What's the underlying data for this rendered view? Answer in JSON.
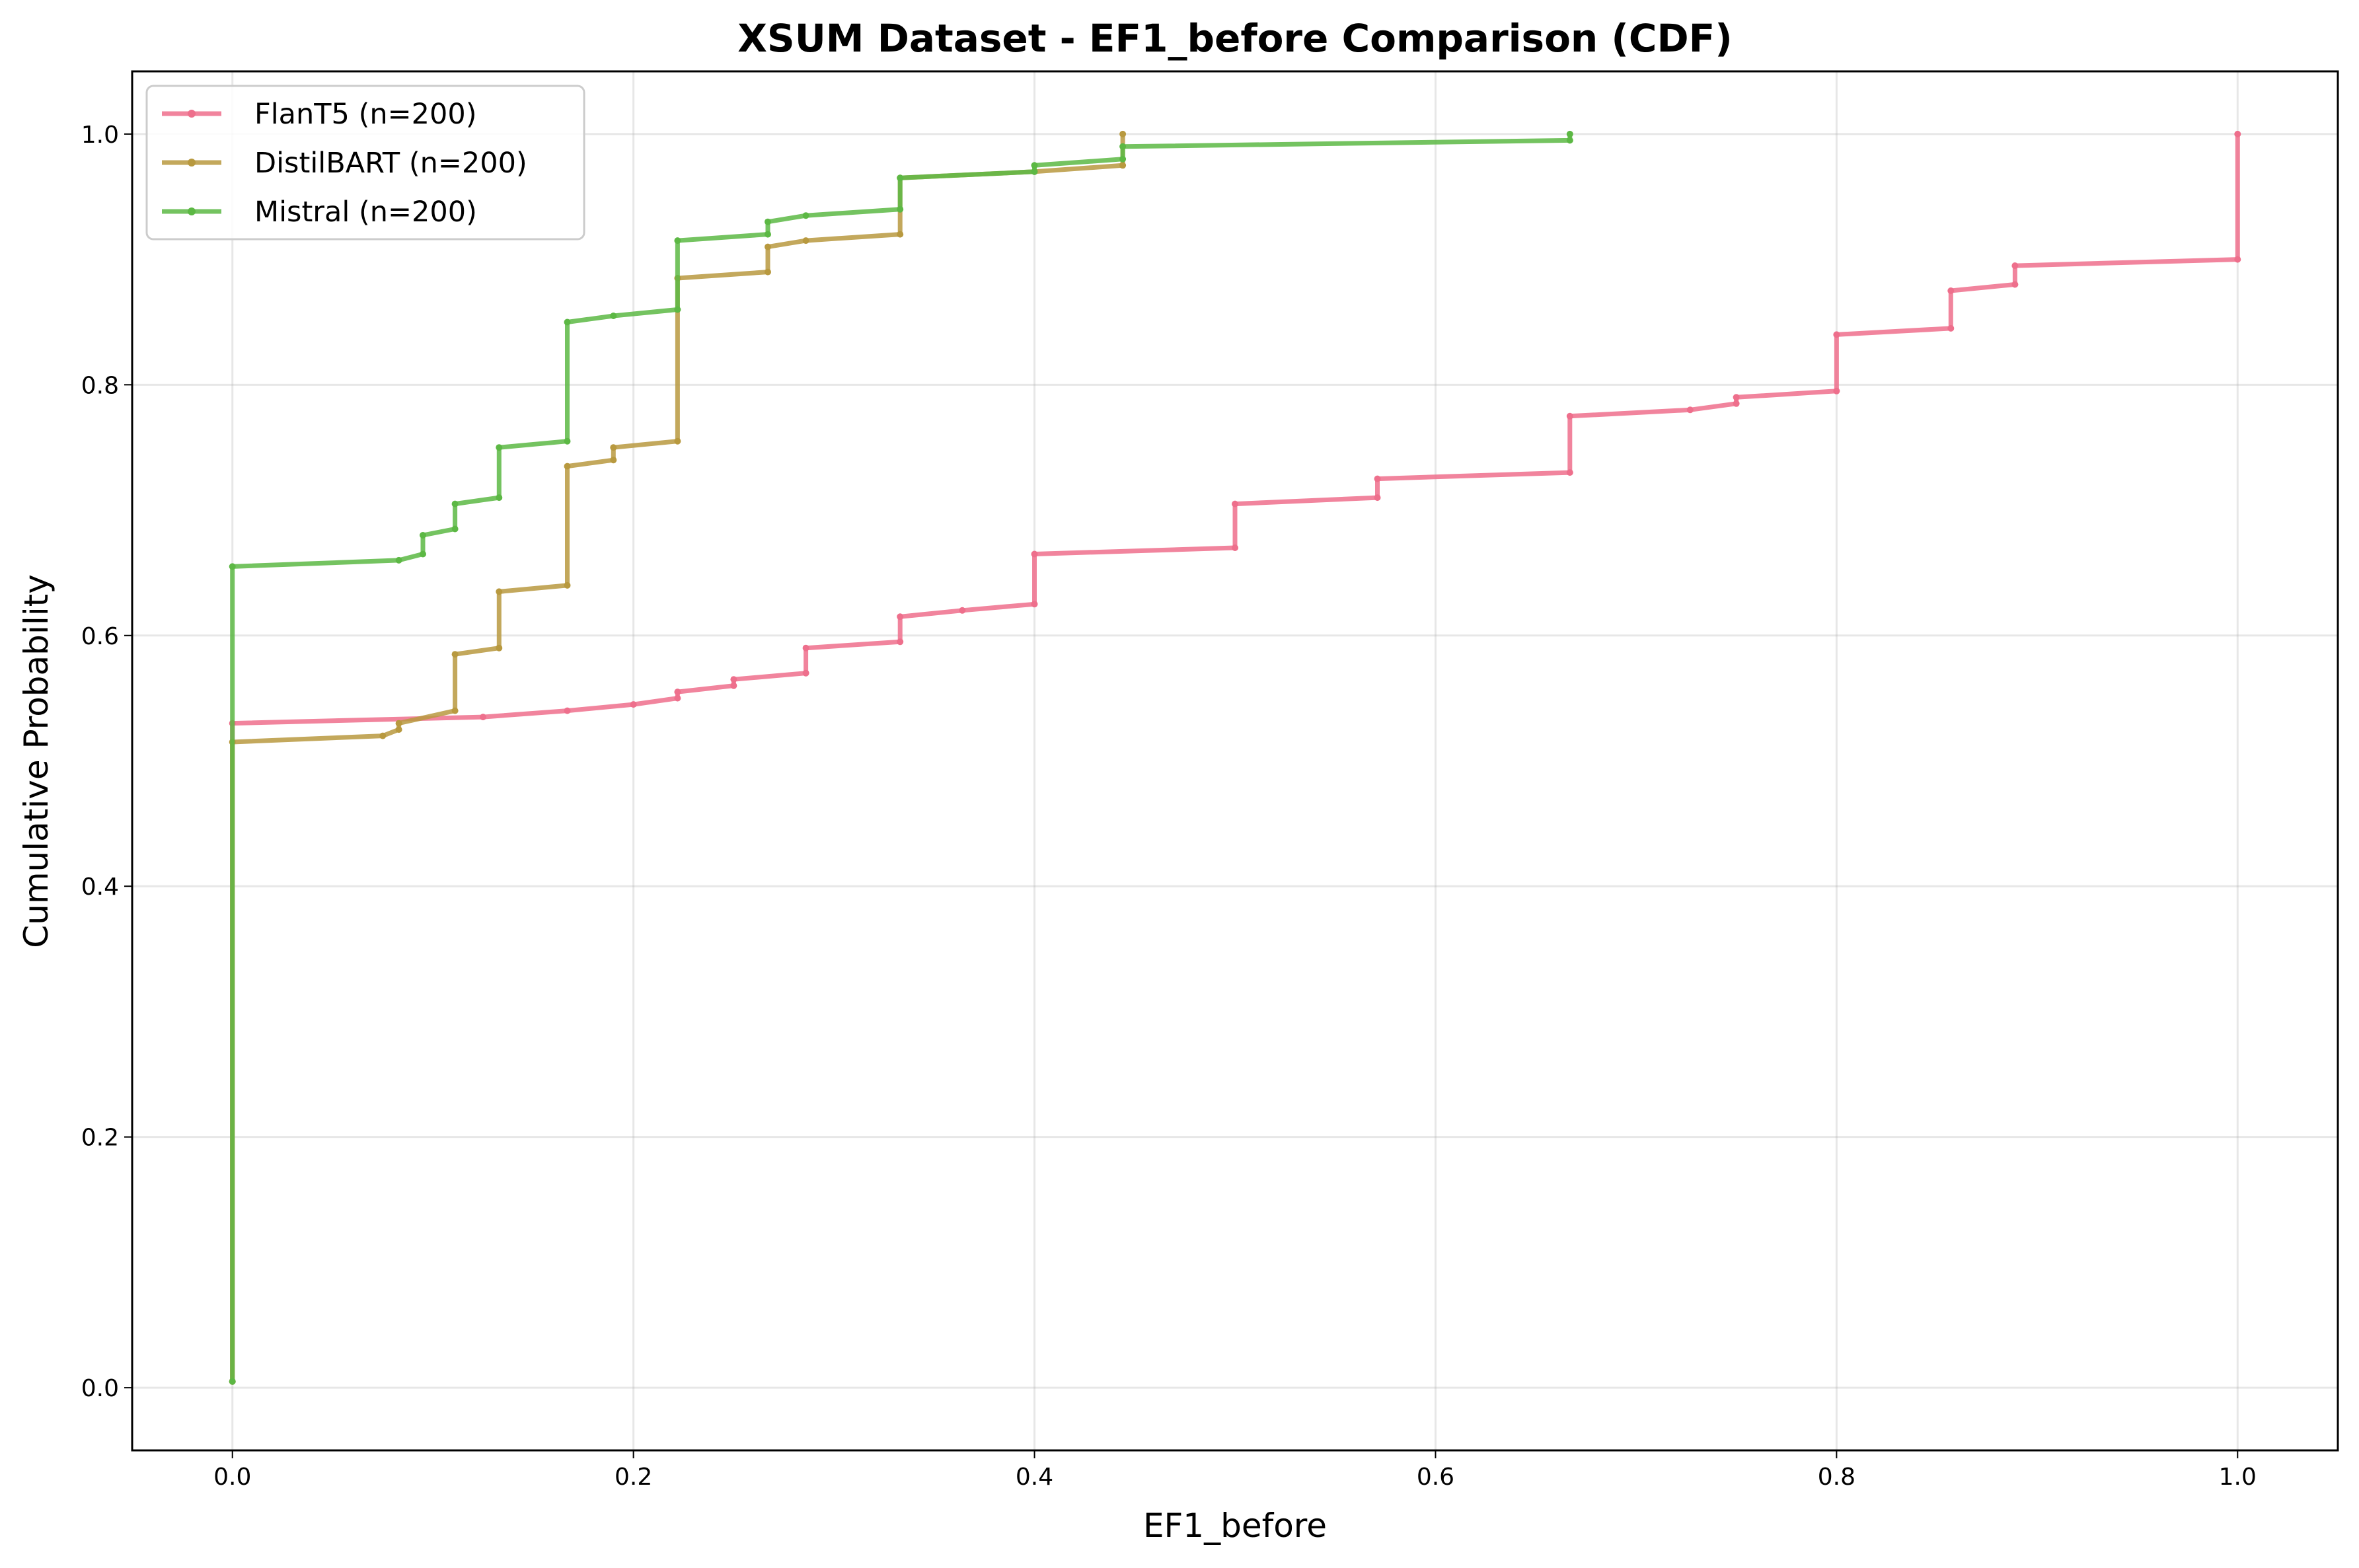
{
  "chart_data": {
    "type": "line",
    "title": "XSUM Dataset - EF1_before Comparison (CDF)",
    "xlabel": "EF1_before",
    "ylabel": "Cumulative Probability",
    "xlim": [
      -0.05,
      1.05
    ],
    "ylim": [
      -0.05,
      1.05
    ],
    "xticks": [
      "0.0",
      "0.2",
      "0.4",
      "0.6",
      "0.8",
      "1.0"
    ],
    "yticks": [
      "0.0",
      "0.2",
      "0.4",
      "0.6",
      "0.8",
      "1.0"
    ],
    "grid": true,
    "legend_position": "upper-left",
    "series": [
      {
        "name": "FlanT5 (n=200)",
        "color": "#ee6f8c",
        "points": [
          [
            0.0,
            0.005
          ],
          [
            0.0,
            0.53
          ],
          [
            0.125,
            0.535
          ],
          [
            0.167,
            0.54
          ],
          [
            0.2,
            0.545
          ],
          [
            0.222,
            0.55
          ],
          [
            0.222,
            0.555
          ],
          [
            0.25,
            0.56
          ],
          [
            0.25,
            0.565
          ],
          [
            0.286,
            0.57
          ],
          [
            0.286,
            0.59
          ],
          [
            0.333,
            0.595
          ],
          [
            0.333,
            0.615
          ],
          [
            0.364,
            0.62
          ],
          [
            0.4,
            0.625
          ],
          [
            0.4,
            0.665
          ],
          [
            0.5,
            0.67
          ],
          [
            0.5,
            0.705
          ],
          [
            0.571,
            0.71
          ],
          [
            0.571,
            0.725
          ],
          [
            0.667,
            0.73
          ],
          [
            0.667,
            0.775
          ],
          [
            0.727,
            0.78
          ],
          [
            0.75,
            0.785
          ],
          [
            0.75,
            0.79
          ],
          [
            0.8,
            0.795
          ],
          [
            0.8,
            0.84
          ],
          [
            0.857,
            0.845
          ],
          [
            0.857,
            0.875
          ],
          [
            0.889,
            0.88
          ],
          [
            0.889,
            0.895
          ],
          [
            1.0,
            0.9
          ],
          [
            1.0,
            1.0
          ]
        ]
      },
      {
        "name": "DistilBART (n=200)",
        "color": "#b8993f",
        "points": [
          [
            0.0,
            0.005
          ],
          [
            0.0,
            0.515
          ],
          [
            0.075,
            0.52
          ],
          [
            0.083,
            0.525
          ],
          [
            0.083,
            0.53
          ],
          [
            0.111,
            0.54
          ],
          [
            0.111,
            0.585
          ],
          [
            0.133,
            0.59
          ],
          [
            0.133,
            0.635
          ],
          [
            0.167,
            0.64
          ],
          [
            0.167,
            0.735
          ],
          [
            0.19,
            0.74
          ],
          [
            0.19,
            0.75
          ],
          [
            0.222,
            0.755
          ],
          [
            0.222,
            0.885
          ],
          [
            0.267,
            0.89
          ],
          [
            0.267,
            0.91
          ],
          [
            0.286,
            0.915
          ],
          [
            0.333,
            0.92
          ],
          [
            0.333,
            0.965
          ],
          [
            0.4,
            0.97
          ],
          [
            0.444,
            0.975
          ],
          [
            0.444,
            1.0
          ]
        ]
      },
      {
        "name": "Mistral (n=200)",
        "color": "#5cb844",
        "points": [
          [
            0.0,
            0.005
          ],
          [
            0.0,
            0.655
          ],
          [
            0.083,
            0.66
          ],
          [
            0.095,
            0.665
          ],
          [
            0.095,
            0.68
          ],
          [
            0.111,
            0.685
          ],
          [
            0.111,
            0.705
          ],
          [
            0.133,
            0.71
          ],
          [
            0.133,
            0.75
          ],
          [
            0.167,
            0.755
          ],
          [
            0.167,
            0.85
          ],
          [
            0.19,
            0.855
          ],
          [
            0.222,
            0.86
          ],
          [
            0.222,
            0.915
          ],
          [
            0.267,
            0.92
          ],
          [
            0.267,
            0.93
          ],
          [
            0.286,
            0.935
          ],
          [
            0.333,
            0.94
          ],
          [
            0.333,
            0.965
          ],
          [
            0.4,
            0.97
          ],
          [
            0.4,
            0.975
          ],
          [
            0.444,
            0.98
          ],
          [
            0.444,
            0.99
          ],
          [
            0.667,
            0.995
          ],
          [
            0.667,
            1.0
          ]
        ]
      }
    ]
  }
}
